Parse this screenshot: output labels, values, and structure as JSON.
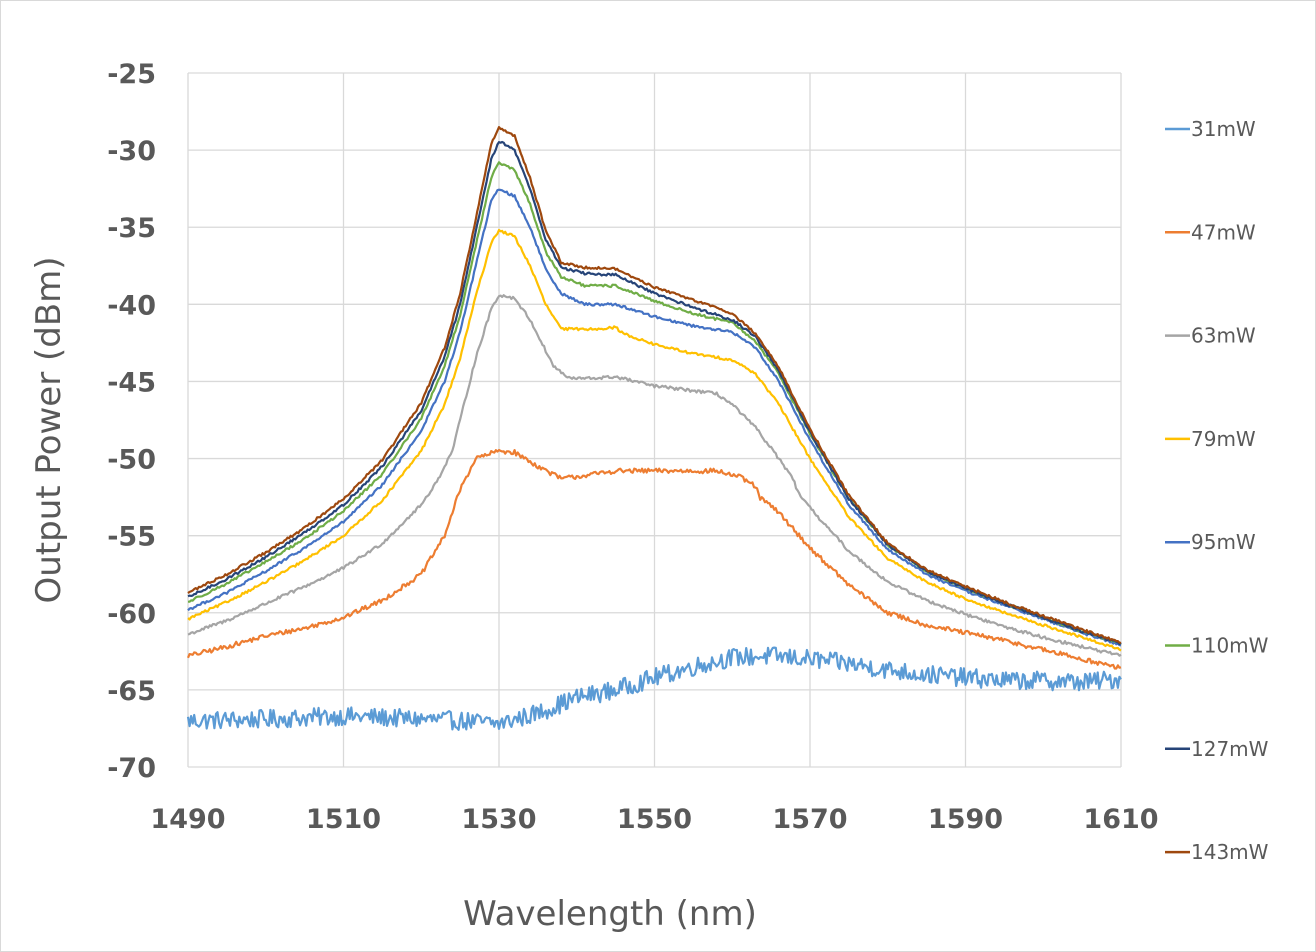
{
  "chart_data": {
    "type": "line",
    "xlabel": "Wavelength (nm)",
    "ylabel": "Output Power (dBm)",
    "xlim": [
      1490,
      1610
    ],
    "ylim": [
      -70,
      -25
    ],
    "xticks": [
      1490,
      1510,
      1530,
      1550,
      1570,
      1590,
      1610
    ],
    "yticks": [
      -25,
      -30,
      -35,
      -40,
      -45,
      -50,
      -55,
      -60,
      -65,
      -70
    ],
    "grid": true,
    "legend_position": "right",
    "series": [
      {
        "name": "31mW",
        "color": "#5b9bd5",
        "noise": 0.6,
        "points": [
          [
            1490,
            -67.0
          ],
          [
            1500,
            -66.9
          ],
          [
            1510,
            -66.7
          ],
          [
            1520,
            -66.9
          ],
          [
            1525,
            -67.0
          ],
          [
            1530,
            -67.2
          ],
          [
            1535,
            -66.5
          ],
          [
            1540,
            -65.5
          ],
          [
            1545,
            -65.0
          ],
          [
            1550,
            -64.2
          ],
          [
            1555,
            -63.5
          ],
          [
            1560,
            -62.9
          ],
          [
            1565,
            -62.8
          ],
          [
            1570,
            -63.0
          ],
          [
            1575,
            -63.3
          ],
          [
            1580,
            -63.7
          ],
          [
            1585,
            -64.0
          ],
          [
            1590,
            -64.2
          ],
          [
            1595,
            -64.4
          ],
          [
            1600,
            -64.4
          ],
          [
            1605,
            -64.5
          ],
          [
            1610,
            -64.3
          ]
        ]
      },
      {
        "name": "47mW",
        "color": "#ed7d31",
        "noise": 0.15,
        "points": [
          [
            1490,
            -62.8
          ],
          [
            1495,
            -62.2
          ],
          [
            1500,
            -61.5
          ],
          [
            1505,
            -61.0
          ],
          [
            1510,
            -60.3
          ],
          [
            1515,
            -59.2
          ],
          [
            1520,
            -57.5
          ],
          [
            1523,
            -55.0
          ],
          [
            1525,
            -52.0
          ],
          [
            1527,
            -50.0
          ],
          [
            1530,
            -49.5
          ],
          [
            1532,
            -49.6
          ],
          [
            1535,
            -50.5
          ],
          [
            1538,
            -51.3
          ],
          [
            1541,
            -51.1
          ],
          [
            1545,
            -50.8
          ],
          [
            1550,
            -50.8
          ],
          [
            1555,
            -50.8
          ],
          [
            1558,
            -50.8
          ],
          [
            1561,
            -51.2
          ],
          [
            1563,
            -51.8
          ],
          [
            1563.5,
            -52.5
          ],
          [
            1566,
            -53.5
          ],
          [
            1570,
            -55.8
          ],
          [
            1575,
            -58.2
          ],
          [
            1580,
            -60.0
          ],
          [
            1585,
            -60.8
          ],
          [
            1590,
            -61.3
          ],
          [
            1595,
            -61.8
          ],
          [
            1600,
            -62.4
          ],
          [
            1605,
            -63.0
          ],
          [
            1610,
            -63.6
          ]
        ]
      },
      {
        "name": "63mW",
        "color": "#a5a5a5",
        "noise": 0.1,
        "points": [
          [
            1490,
            -61.4
          ],
          [
            1495,
            -60.5
          ],
          [
            1500,
            -59.4
          ],
          [
            1505,
            -58.3
          ],
          [
            1510,
            -57.1
          ],
          [
            1515,
            -55.5
          ],
          [
            1520,
            -53.0
          ],
          [
            1522,
            -51.5
          ],
          [
            1524,
            -49.5
          ],
          [
            1525,
            -47.5
          ],
          [
            1527,
            -43.5
          ],
          [
            1529,
            -40.3
          ],
          [
            1530,
            -39.4
          ],
          [
            1532,
            -39.6
          ],
          [
            1534,
            -41.0
          ],
          [
            1535,
            -42.0
          ],
          [
            1537,
            -44.0
          ],
          [
            1539,
            -44.8
          ],
          [
            1542,
            -44.8
          ],
          [
            1545,
            -44.7
          ],
          [
            1550,
            -45.3
          ],
          [
            1555,
            -45.6
          ],
          [
            1558,
            -45.8
          ],
          [
            1560,
            -46.5
          ],
          [
            1563,
            -48.0
          ],
          [
            1566,
            -50.0
          ],
          [
            1568,
            -51.5
          ],
          [
            1568.2,
            -52.0
          ],
          [
            1570,
            -53.2
          ],
          [
            1575,
            -56.0
          ],
          [
            1580,
            -58.0
          ],
          [
            1585,
            -59.2
          ],
          [
            1590,
            -60.1
          ],
          [
            1595,
            -60.9
          ],
          [
            1600,
            -61.6
          ],
          [
            1605,
            -62.2
          ],
          [
            1610,
            -62.8
          ]
        ]
      },
      {
        "name": "79mW",
        "color": "#ffc000",
        "noise": 0.08,
        "points": [
          [
            1490,
            -60.4
          ],
          [
            1495,
            -59.3
          ],
          [
            1500,
            -58.0
          ],
          [
            1505,
            -56.6
          ],
          [
            1510,
            -55.0
          ],
          [
            1515,
            -52.7
          ],
          [
            1520,
            -49.5
          ],
          [
            1523,
            -46.5
          ],
          [
            1525,
            -43.5
          ],
          [
            1527,
            -39.5
          ],
          [
            1529,
            -36.0
          ],
          [
            1530,
            -35.2
          ],
          [
            1532,
            -35.6
          ],
          [
            1534,
            -37.5
          ],
          [
            1536,
            -40.0
          ],
          [
            1538,
            -41.6
          ],
          [
            1542,
            -41.6
          ],
          [
            1545,
            -41.5
          ],
          [
            1546,
            -41.9
          ],
          [
            1550,
            -42.6
          ],
          [
            1555,
            -43.2
          ],
          [
            1560,
            -43.6
          ],
          [
            1563,
            -44.5
          ],
          [
            1566,
            -46.5
          ],
          [
            1570,
            -50.0
          ],
          [
            1575,
            -53.8
          ],
          [
            1580,
            -56.5
          ],
          [
            1585,
            -58.0
          ],
          [
            1590,
            -59.1
          ],
          [
            1595,
            -60.0
          ],
          [
            1600,
            -60.8
          ],
          [
            1605,
            -61.6
          ],
          [
            1610,
            -62.4
          ]
        ]
      },
      {
        "name": "95mW",
        "color": "#4472c4",
        "noise": 0.08,
        "points": [
          [
            1490,
            -59.8
          ],
          [
            1495,
            -58.7
          ],
          [
            1500,
            -57.3
          ],
          [
            1505,
            -55.8
          ],
          [
            1510,
            -54.1
          ],
          [
            1515,
            -51.7
          ],
          [
            1520,
            -48.2
          ],
          [
            1523,
            -45.0
          ],
          [
            1525,
            -41.8
          ],
          [
            1527,
            -37.5
          ],
          [
            1529,
            -33.3
          ],
          [
            1530,
            -32.5
          ],
          [
            1532,
            -33.0
          ],
          [
            1534,
            -35.0
          ],
          [
            1536,
            -37.7
          ],
          [
            1538,
            -39.3
          ],
          [
            1541,
            -40.0
          ],
          [
            1545,
            -40.0
          ],
          [
            1550,
            -40.8
          ],
          [
            1555,
            -41.4
          ],
          [
            1560,
            -41.8
          ],
          [
            1563,
            -42.8
          ],
          [
            1566,
            -45.0
          ],
          [
            1570,
            -48.8
          ],
          [
            1575,
            -53.0
          ],
          [
            1580,
            -55.9
          ],
          [
            1585,
            -57.5
          ],
          [
            1590,
            -58.6
          ],
          [
            1595,
            -59.5
          ],
          [
            1600,
            -60.4
          ],
          [
            1605,
            -61.3
          ],
          [
            1610,
            -62.1
          ]
        ]
      },
      {
        "name": "110mW",
        "color": "#70ad47",
        "noise": 0.08,
        "points": [
          [
            1490,
            -59.3
          ],
          [
            1495,
            -58.1
          ],
          [
            1500,
            -56.7
          ],
          [
            1505,
            -55.2
          ],
          [
            1510,
            -53.4
          ],
          [
            1515,
            -51.0
          ],
          [
            1520,
            -47.4
          ],
          [
            1523,
            -44.0
          ],
          [
            1525,
            -40.7
          ],
          [
            1527,
            -36.2
          ],
          [
            1529,
            -31.8
          ],
          [
            1530,
            -30.8
          ],
          [
            1532,
            -31.3
          ],
          [
            1534,
            -33.5
          ],
          [
            1536,
            -36.6
          ],
          [
            1538,
            -38.2
          ],
          [
            1541,
            -38.8
          ],
          [
            1545,
            -38.8
          ],
          [
            1550,
            -39.8
          ],
          [
            1555,
            -40.6
          ],
          [
            1560,
            -41.2
          ],
          [
            1563,
            -42.4
          ],
          [
            1566,
            -44.5
          ],
          [
            1570,
            -48.4
          ],
          [
            1575,
            -52.6
          ],
          [
            1580,
            -55.6
          ],
          [
            1585,
            -57.3
          ],
          [
            1590,
            -58.4
          ],
          [
            1595,
            -59.4
          ],
          [
            1600,
            -60.3
          ],
          [
            1605,
            -61.2
          ],
          [
            1610,
            -62.0
          ]
        ]
      },
      {
        "name": "127mW",
        "color": "#264478",
        "noise": 0.08,
        "points": [
          [
            1490,
            -59.0
          ],
          [
            1495,
            -57.8
          ],
          [
            1500,
            -56.4
          ],
          [
            1505,
            -54.8
          ],
          [
            1510,
            -53.0
          ],
          [
            1515,
            -50.5
          ],
          [
            1520,
            -46.9
          ],
          [
            1523,
            -43.4
          ],
          [
            1525,
            -40.0
          ],
          [
            1527,
            -35.3
          ],
          [
            1529,
            -30.6
          ],
          [
            1530,
            -29.4
          ],
          [
            1532,
            -30.0
          ],
          [
            1534,
            -32.5
          ],
          [
            1536,
            -35.8
          ],
          [
            1538,
            -37.6
          ],
          [
            1541,
            -38.0
          ],
          [
            1545,
            -38.1
          ],
          [
            1550,
            -39.3
          ],
          [
            1555,
            -40.2
          ],
          [
            1560,
            -41.0
          ],
          [
            1563,
            -42.1
          ],
          [
            1566,
            -44.3
          ],
          [
            1570,
            -48.3
          ],
          [
            1575,
            -52.6
          ],
          [
            1580,
            -55.6
          ],
          [
            1585,
            -57.3
          ],
          [
            1590,
            -58.4
          ],
          [
            1595,
            -59.4
          ],
          [
            1600,
            -60.3
          ],
          [
            1605,
            -61.2
          ],
          [
            1610,
            -62.0
          ]
        ]
      },
      {
        "name": "143mW",
        "color": "#9e480e",
        "noise": 0.08,
        "points": [
          [
            1490,
            -58.7
          ],
          [
            1495,
            -57.5
          ],
          [
            1500,
            -56.1
          ],
          [
            1505,
            -54.5
          ],
          [
            1510,
            -52.6
          ],
          [
            1515,
            -50.1
          ],
          [
            1520,
            -46.4
          ],
          [
            1523,
            -42.8
          ],
          [
            1525,
            -39.3
          ],
          [
            1527,
            -34.5
          ],
          [
            1529,
            -29.6
          ],
          [
            1530,
            -28.5
          ],
          [
            1532,
            -29.1
          ],
          [
            1534,
            -31.8
          ],
          [
            1536,
            -35.2
          ],
          [
            1538,
            -37.3
          ],
          [
            1541,
            -37.6
          ],
          [
            1545,
            -37.7
          ],
          [
            1550,
            -38.9
          ],
          [
            1555,
            -39.7
          ],
          [
            1560,
            -40.6
          ],
          [
            1563,
            -41.9
          ],
          [
            1566,
            -44.1
          ],
          [
            1570,
            -48.1
          ],
          [
            1575,
            -52.4
          ],
          [
            1580,
            -55.5
          ],
          [
            1585,
            -57.2
          ],
          [
            1590,
            -58.3
          ],
          [
            1595,
            -59.3
          ],
          [
            1600,
            -60.2
          ],
          [
            1605,
            -61.1
          ],
          [
            1610,
            -61.9
          ]
        ]
      }
    ]
  }
}
